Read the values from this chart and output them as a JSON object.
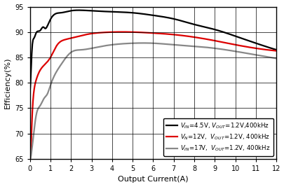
{
  "xlabel": "Output Current(A)",
  "ylabel": "Efficiency(%)",
  "xlim": [
    0,
    12
  ],
  "ylim": [
    65,
    95
  ],
  "yticks": [
    65,
    70,
    75,
    80,
    85,
    90,
    95
  ],
  "xticks": [
    0,
    1,
    2,
    3,
    4,
    5,
    6,
    7,
    8,
    9,
    10,
    11,
    12
  ],
  "legend": [
    {
      "label": "$V_{IN}$=4.5V, $V_{OUT}$=1.2V,400kHz",
      "color": "#000000"
    },
    {
      "label": "$V_{N}$=12V,  $V_{OUT}$=1.2V, 400kHz",
      "color": "#dd0000"
    },
    {
      "label": "$V_{IN}$=17V,  $V_{OUT}$=1.2V, 400kHz",
      "color": "#888888"
    }
  ],
  "curve_black": {
    "x": [
      0.0,
      0.05,
      0.1,
      0.2,
      0.3,
      0.5,
      0.65,
      0.75,
      0.85,
      1.0,
      1.2,
      1.5,
      2.0,
      2.5,
      3.0,
      4.0,
      5.0,
      6.0,
      7.0,
      8.0,
      9.0,
      10.0,
      11.0,
      12.0
    ],
    "y": [
      78.0,
      82.0,
      86.5,
      88.8,
      89.8,
      90.3,
      91.0,
      90.7,
      91.2,
      92.5,
      93.5,
      93.8,
      94.2,
      94.3,
      94.2,
      94.0,
      93.8,
      93.3,
      92.6,
      91.5,
      90.5,
      89.2,
      87.8,
      86.5
    ]
  },
  "curve_red": {
    "x": [
      0.0,
      0.05,
      0.1,
      0.2,
      0.3,
      0.5,
      0.7,
      1.0,
      1.3,
      1.7,
      2.0,
      2.5,
      3.0,
      3.5,
      4.0,
      5.0,
      6.0,
      7.0,
      8.0,
      9.0,
      10.0,
      11.0,
      12.0
    ],
    "y": [
      65.0,
      67.0,
      72.5,
      78.5,
      80.5,
      82.5,
      83.5,
      85.0,
      87.3,
      88.5,
      88.8,
      89.3,
      89.7,
      89.9,
      90.0,
      90.0,
      89.8,
      89.5,
      89.0,
      88.3,
      87.5,
      86.8,
      86.3
    ]
  },
  "curve_gray": {
    "x": [
      0.0,
      0.05,
      0.1,
      0.2,
      0.3,
      0.5,
      0.7,
      0.85,
      1.0,
      1.5,
      2.0,
      2.5,
      3.0,
      3.5,
      4.0,
      5.0,
      6.0,
      7.0,
      8.0,
      9.0,
      10.0,
      11.0,
      12.0
    ],
    "y": [
      65.0,
      65.5,
      67.0,
      70.5,
      73.5,
      75.5,
      77.0,
      77.8,
      79.5,
      83.5,
      86.0,
      86.5,
      86.8,
      87.2,
      87.5,
      87.8,
      87.8,
      87.5,
      87.2,
      86.8,
      86.2,
      85.5,
      84.8
    ]
  },
  "grid_color": "#000000",
  "grid_linewidth": 0.5,
  "line_linewidth": 1.6,
  "tick_labelsize": 7,
  "axis_labelsize": 8,
  "legend_fontsize": 6.2
}
